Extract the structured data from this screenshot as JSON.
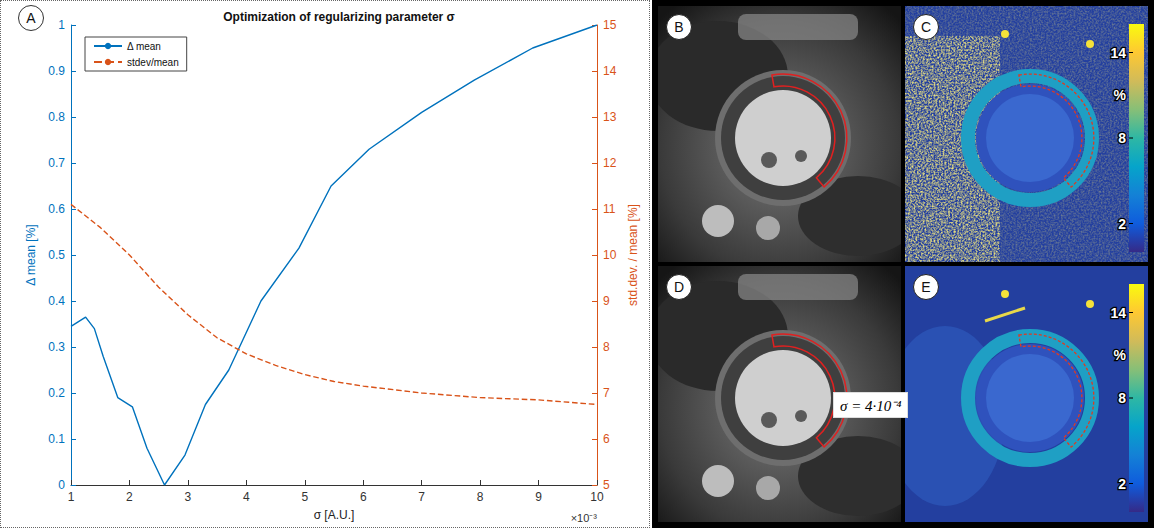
{
  "chart_data": {
    "type": "line",
    "title": "Optimization of regularizing parameter σ",
    "x_label": "σ [A.U.]",
    "y_label": "Δ mean [%]",
    "y2_label": "std.dev. / mean [%]",
    "x_scale_note": "×10⁻³",
    "xlim": [
      0.001,
      0.01
    ],
    "xticks": [
      {
        "value": 0.001,
        "label": "1"
      },
      {
        "value": 0.002,
        "label": "2"
      },
      {
        "value": 0.003,
        "label": "3"
      },
      {
        "value": 0.004,
        "label": "4"
      },
      {
        "value": 0.005,
        "label": "5"
      },
      {
        "value": 0.006,
        "label": "6"
      },
      {
        "value": 0.007,
        "label": "7"
      },
      {
        "value": 0.008,
        "label": "8"
      },
      {
        "value": 0.009,
        "label": "9"
      },
      {
        "value": 0.01,
        "label": "10"
      }
    ],
    "ylim": [
      0,
      1
    ],
    "yticks": [
      0,
      0.1,
      0.2,
      0.3,
      0.4,
      0.5,
      0.6,
      0.7,
      0.8,
      0.9,
      1
    ],
    "y2lim": [
      5,
      15
    ],
    "y2ticks": [
      5,
      6,
      7,
      8,
      9,
      10,
      11,
      12,
      13,
      14,
      15
    ],
    "grid": false,
    "legend": "upper left",
    "series": [
      {
        "name": "Δ mean",
        "color": "#0072bd",
        "line_style": "solid",
        "x": [
          0.001,
          0.00125,
          0.0014,
          0.00155,
          0.0018,
          0.00205,
          0.0023,
          0.0026,
          0.00295,
          0.0033,
          0.0037,
          0.00425,
          0.0049,
          0.00545,
          0.0061,
          0.007,
          0.0079,
          0.0089,
          0.01
        ],
        "values": [
          0.345,
          0.365,
          0.34,
          0.28,
          0.19,
          0.17,
          0.08,
          0.0,
          0.065,
          0.175,
          0.25,
          0.4,
          0.515,
          0.65,
          0.73,
          0.81,
          0.88,
          0.95,
          1.0
        ]
      },
      {
        "name": "stdev/mean",
        "color": "#d95319",
        "line_style": "dashed",
        "axis": "y2",
        "x": [
          0.001,
          0.0015,
          0.002,
          0.0025,
          0.003,
          0.0035,
          0.004,
          0.0045,
          0.005,
          0.0055,
          0.006,
          0.007,
          0.008,
          0.009,
          0.01
        ],
        "values": [
          11.1,
          10.6,
          10.0,
          9.3,
          8.7,
          8.2,
          7.85,
          7.6,
          7.4,
          7.25,
          7.15,
          7.0,
          6.9,
          6.85,
          6.75
        ]
      }
    ]
  },
  "figure": {
    "panel_letter": "A",
    "images": [
      {
        "letter": "B"
      },
      {
        "letter": "C",
        "colorbar": {
          "range": [
            0,
            16
          ],
          "ticks": [
            2,
            8,
            14
          ],
          "unit": "%"
        }
      },
      {
        "letter": "D"
      },
      {
        "letter": "E",
        "colorbar": {
          "range": [
            0,
            16
          ],
          "ticks": [
            2,
            8,
            14
          ],
          "unit": "%"
        }
      }
    ],
    "annotation": "σ = 4·10⁻⁴"
  }
}
